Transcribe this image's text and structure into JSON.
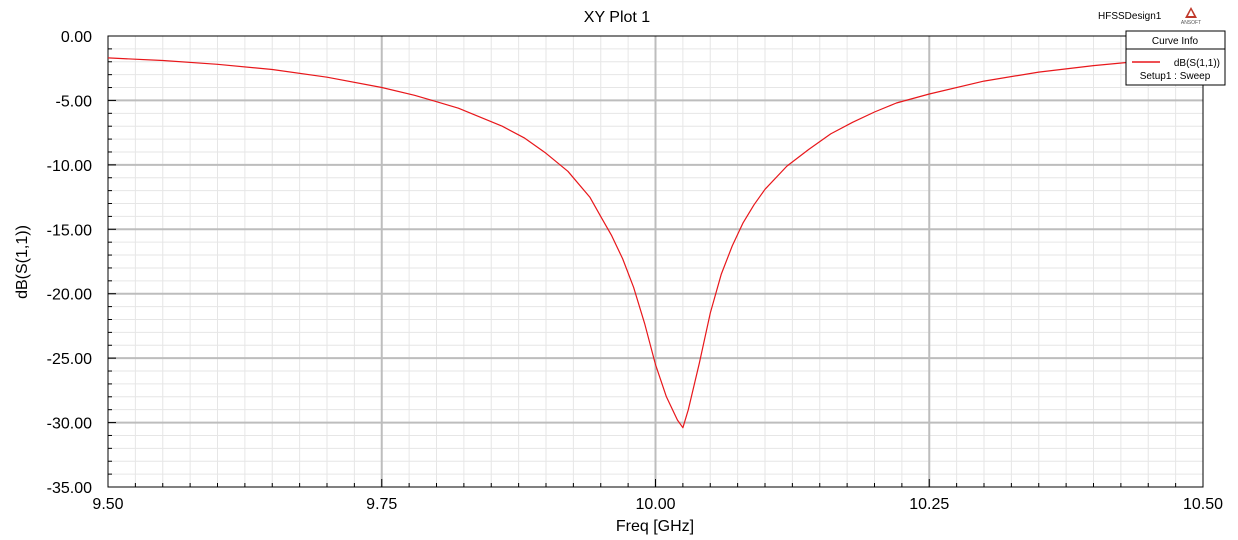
{
  "header": {
    "design_name": "HFSSDesign1",
    "logo_text": "ANSOFT"
  },
  "legend": {
    "title": "Curve Info",
    "entries": [
      {
        "name": "dB(S(1,1))",
        "sub": "Setup1 : Sweep",
        "color": "#e8171b"
      }
    ]
  },
  "chart_data": {
    "type": "line",
    "title": "XY Plot 1",
    "xlabel": "Freq [GHz]",
    "ylabel": "dB(S(1,1))",
    "xlim": [
      9.5,
      10.5
    ],
    "ylim": [
      -35,
      0
    ],
    "x_ticks": [
      "9.50",
      "9.75",
      "10.00",
      "10.25",
      "10.50"
    ],
    "y_ticks": [
      "0.00",
      "-5.00",
      "-10.00",
      "-15.00",
      "-20.00",
      "-25.00",
      "-30.00",
      "-35.00"
    ],
    "grid": true,
    "legend_position": "top-right",
    "series": [
      {
        "name": "dB(S(1,1))",
        "color": "#e8171b",
        "x": [
          9.5,
          9.55,
          9.6,
          9.65,
          9.7,
          9.75,
          9.78,
          9.8,
          9.82,
          9.84,
          9.86,
          9.88,
          9.9,
          9.92,
          9.94,
          9.95,
          9.96,
          9.97,
          9.98,
          9.99,
          10.0,
          10.01,
          10.02,
          10.025,
          10.03,
          10.04,
          10.05,
          10.06,
          10.07,
          10.08,
          10.09,
          10.1,
          10.12,
          10.14,
          10.16,
          10.18,
          10.2,
          10.22,
          10.25,
          10.3,
          10.35,
          10.4,
          10.45
        ],
        "y": [
          -1.7,
          -1.9,
          -2.2,
          -2.6,
          -3.2,
          -4.0,
          -4.6,
          -5.1,
          -5.6,
          -6.3,
          -7.0,
          -7.9,
          -9.1,
          -10.5,
          -12.5,
          -14.0,
          -15.5,
          -17.3,
          -19.5,
          -22.3,
          -25.5,
          -28.0,
          -29.8,
          -30.4,
          -29.0,
          -25.4,
          -21.5,
          -18.5,
          -16.3,
          -14.5,
          -13.1,
          -11.9,
          -10.1,
          -8.8,
          -7.6,
          -6.7,
          -5.9,
          -5.2,
          -4.5,
          -3.5,
          -2.8,
          -2.3,
          -1.9
        ]
      }
    ]
  }
}
